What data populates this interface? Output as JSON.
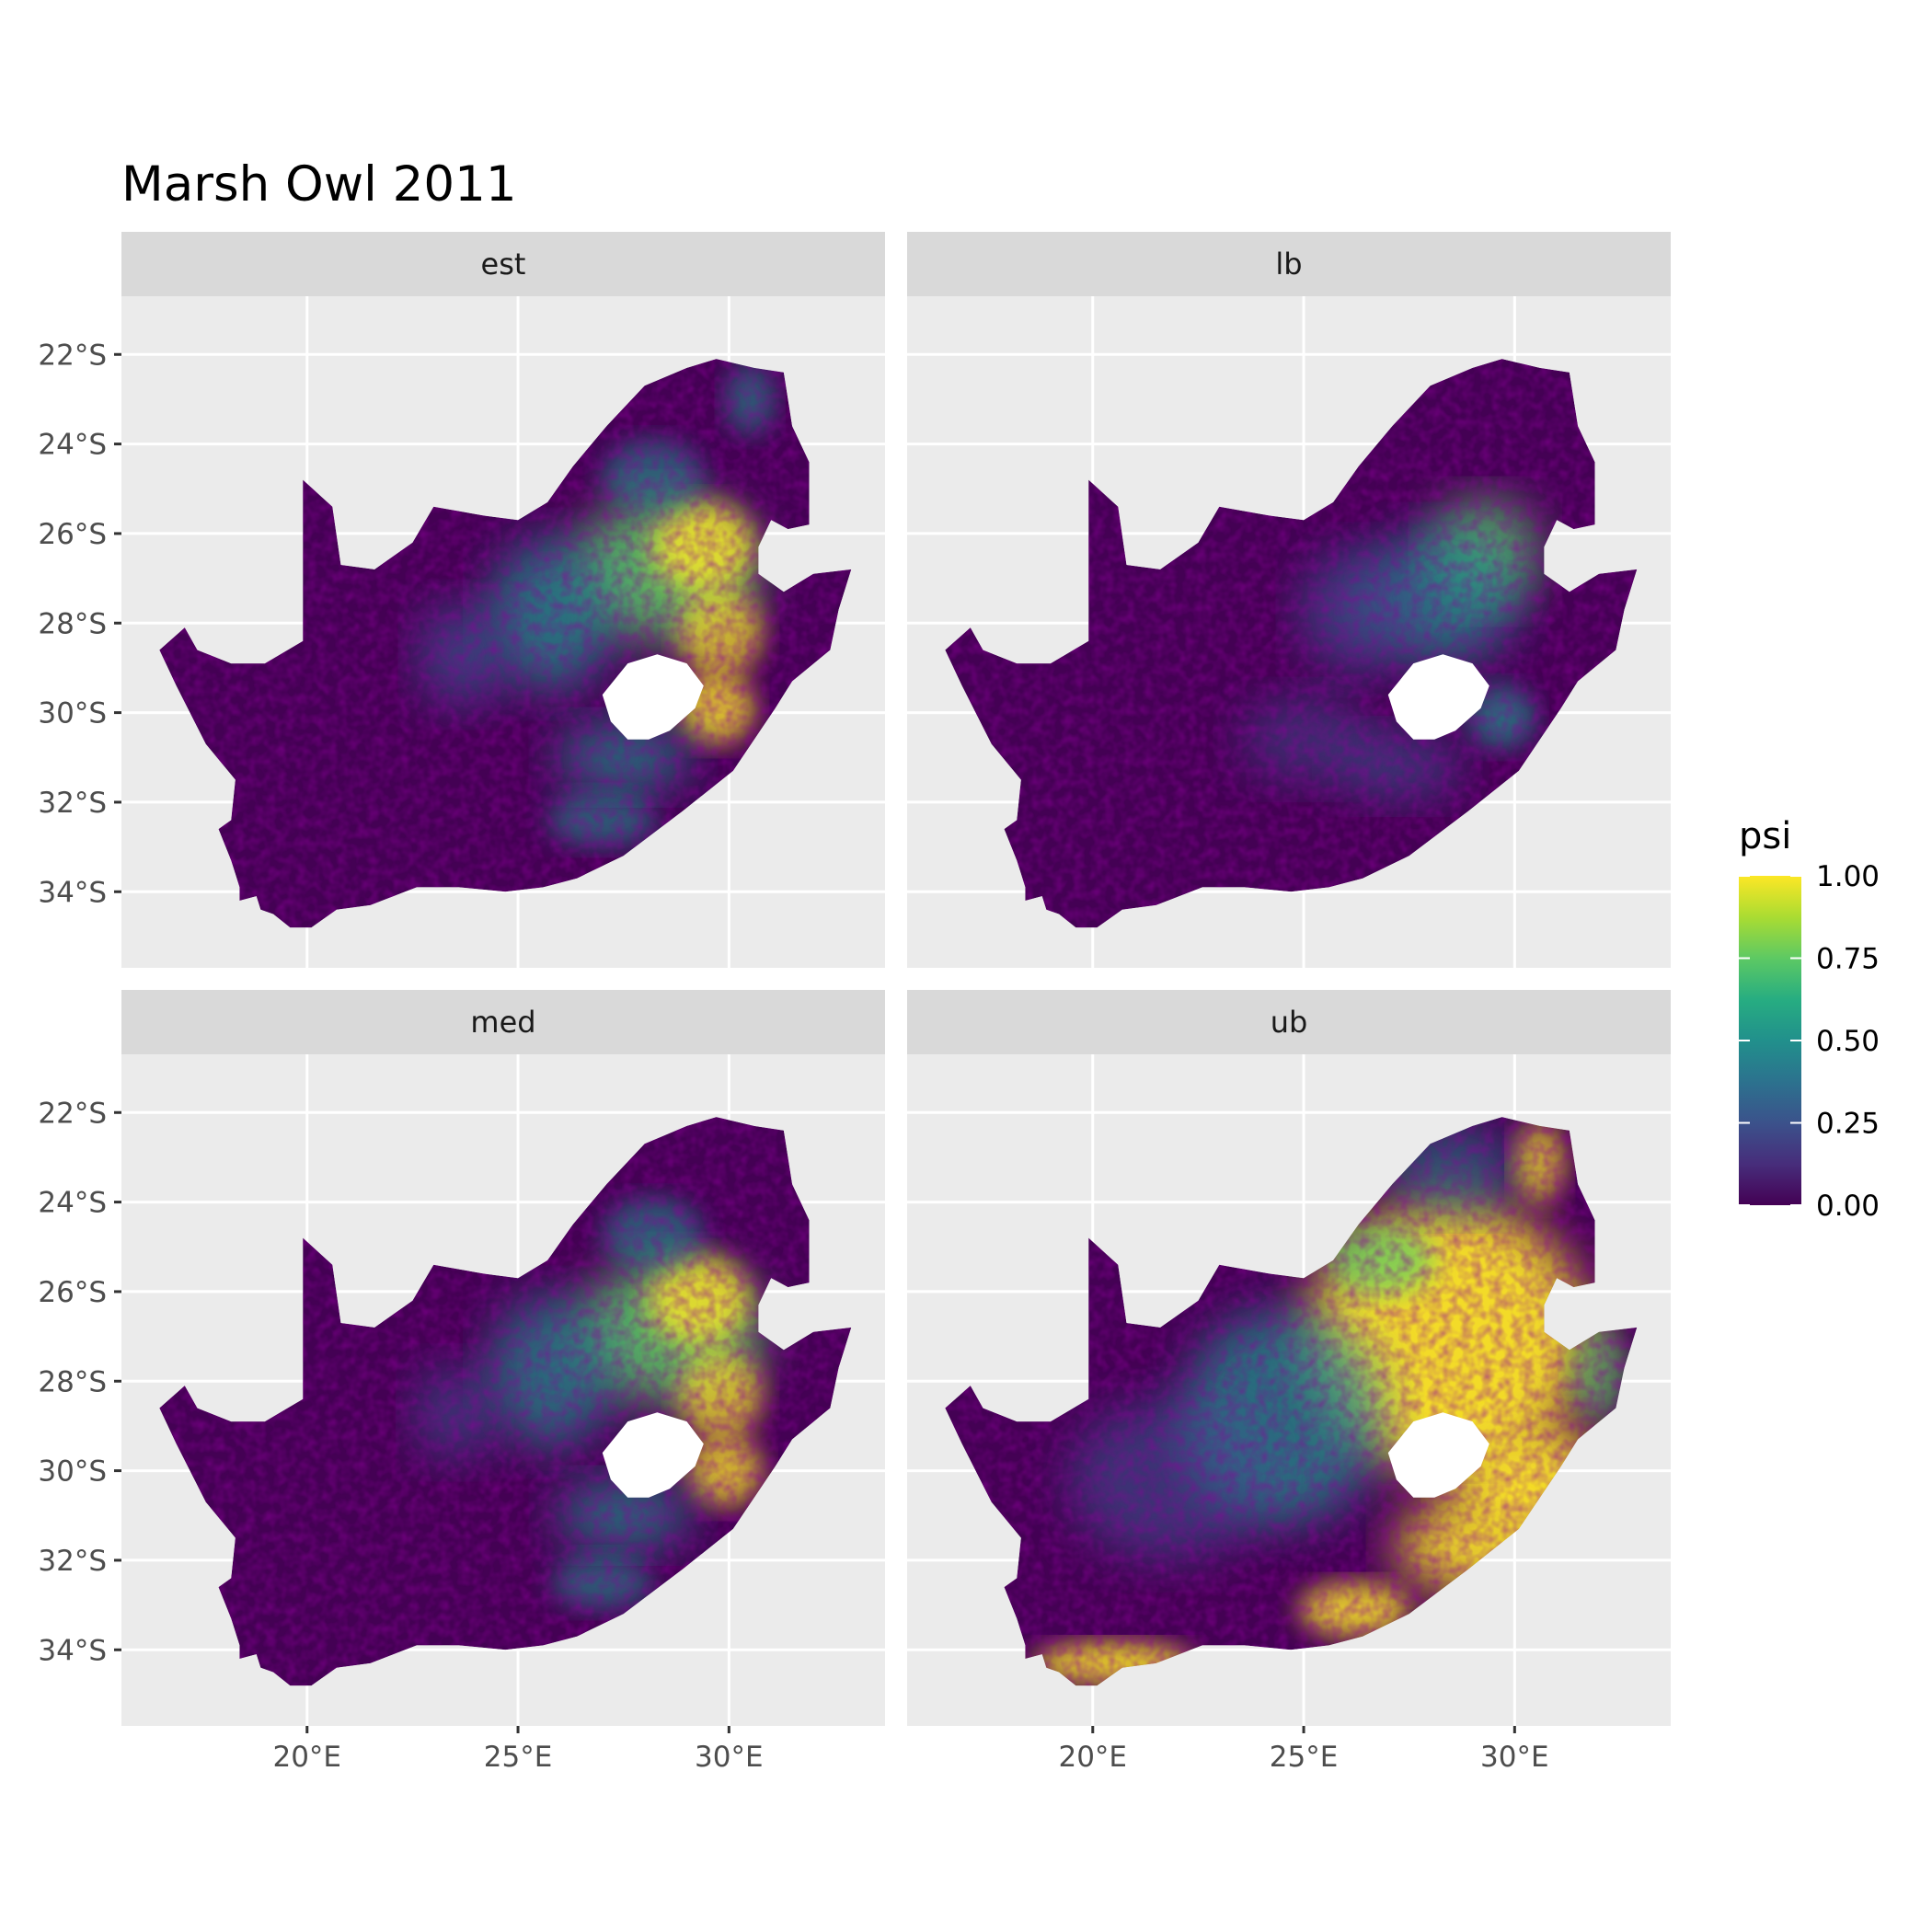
{
  "title": "Marsh Owl 2011",
  "panels": [
    {
      "label": "est",
      "key": "est"
    },
    {
      "label": "lb",
      "key": "lb"
    },
    {
      "label": "med",
      "key": "med"
    },
    {
      "label": "ub",
      "key": "ub"
    }
  ],
  "x_ticks": [
    {
      "value": 20,
      "label": "20°E"
    },
    {
      "value": 25,
      "label": "25°E"
    },
    {
      "value": 30,
      "label": "30°E"
    }
  ],
  "y_ticks": [
    {
      "value": -22,
      "label": "22°S"
    },
    {
      "value": -24,
      "label": "24°S"
    },
    {
      "value": -26,
      "label": "26°S"
    },
    {
      "value": -28,
      "label": "28°S"
    },
    {
      "value": -30,
      "label": "30°S"
    },
    {
      "value": -32,
      "label": "32°S"
    },
    {
      "value": -34,
      "label": "34°S"
    }
  ],
  "legend": {
    "title": "psi",
    "labels": [
      "1.00",
      "0.75",
      "0.50",
      "0.25",
      "0.00"
    ],
    "values": [
      1.0,
      0.75,
      0.5,
      0.25,
      0.0
    ],
    "range": [
      0,
      1
    ],
    "colors": [
      "#440154",
      "#3b528b",
      "#21908c",
      "#5dc963",
      "#fde725"
    ]
  },
  "colors": {
    "panel_background": "#ebebeb",
    "gridline": "#ffffff",
    "strip_background": "#d9d9d9",
    "tick_color": "#333333"
  },
  "chart_data": {
    "type": "heatmap",
    "xlim": [
      15.6,
      33.7
    ],
    "ylim": [
      -35.7,
      -20.7
    ],
    "layout": "2x2 facet grid",
    "grid": true,
    "legend_position": "right",
    "colorscale": "viridis",
    "facets": [
      "est",
      "lb",
      "med",
      "ub"
    ]
  }
}
